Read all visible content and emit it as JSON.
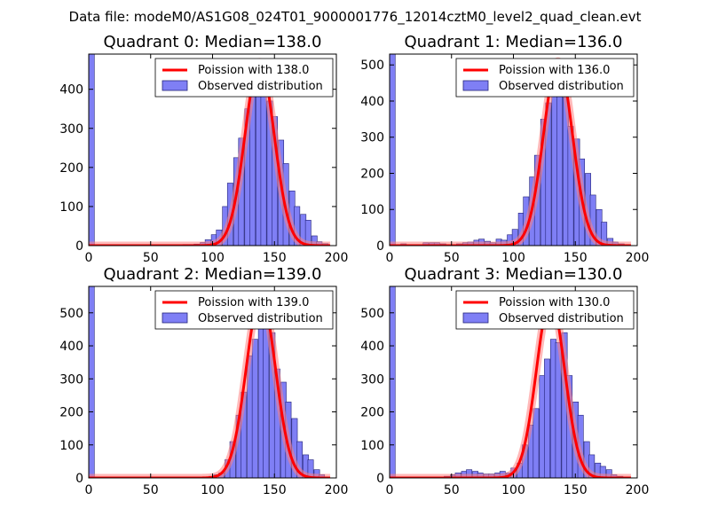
{
  "figure": {
    "suptitle": "Data file: modeM0/AS1G08_024T01_9000001776_12014cztM0_level2_quad_clean.evt"
  },
  "colors": {
    "bars": "#7f7ff5",
    "bar_edge": "#23237a",
    "curve": "#ff0000",
    "curve_halo": "#ff8080",
    "axis": "#000000"
  },
  "chart_data": [
    {
      "type": "bar",
      "title": "Quadrant 0: Median=138.0",
      "xlim": [
        0,
        200
      ],
      "ylim": [
        0,
        490
      ],
      "xticks": [
        0,
        50,
        100,
        150,
        200
      ],
      "yticks": [
        0,
        100,
        200,
        300,
        400
      ],
      "xlabel": "",
      "ylabel": "",
      "bin_width": 4.5,
      "bins": [
        [
          0,
          490
        ],
        [
          76,
          3
        ],
        [
          81,
          3
        ],
        [
          85,
          4
        ],
        [
          90,
          8
        ],
        [
          94,
          15
        ],
        [
          99,
          28
        ],
        [
          103,
          40
        ],
        [
          108,
          100
        ],
        [
          112,
          160
        ],
        [
          117,
          225
        ],
        [
          121,
          275
        ],
        [
          126,
          350
        ],
        [
          130,
          405
        ],
        [
          135,
          430
        ],
        [
          139,
          450
        ],
        [
          144,
          370
        ],
        [
          148,
          330
        ],
        [
          153,
          270
        ],
        [
          157,
          210
        ],
        [
          162,
          140
        ],
        [
          166,
          100
        ],
        [
          171,
          80
        ],
        [
          175,
          65
        ],
        [
          180,
          25
        ],
        [
          184,
          10
        ],
        [
          189,
          5
        ]
      ],
      "legend": {
        "curve_label": "Poission with 138.0",
        "bars_label": "Observed distribution",
        "placement": "upper right"
      },
      "poisson": {
        "mean": 138.0,
        "peak": 470
      }
    },
    {
      "type": "bar",
      "title": "Quadrant 1: Median=136.0",
      "xlim": [
        0,
        200
      ],
      "ylim": [
        0,
        530
      ],
      "xticks": [
        0,
        50,
        100,
        150,
        200
      ],
      "yticks": [
        0,
        100,
        200,
        300,
        400,
        500
      ],
      "xlabel": "",
      "ylabel": "",
      "bin_width": 4.5,
      "bins": [
        [
          0,
          530
        ],
        [
          9,
          5
        ],
        [
          14,
          3
        ],
        [
          18,
          2
        ],
        [
          23,
          2
        ],
        [
          27,
          8
        ],
        [
          32,
          8
        ],
        [
          36,
          8
        ],
        [
          41,
          5
        ],
        [
          45,
          2
        ],
        [
          54,
          5
        ],
        [
          59,
          8
        ],
        [
          63,
          10
        ],
        [
          68,
          15
        ],
        [
          72,
          18
        ],
        [
          77,
          12
        ],
        [
          81,
          8
        ],
        [
          86,
          18
        ],
        [
          90,
          15
        ],
        [
          95,
          30
        ],
        [
          99,
          45
        ],
        [
          104,
          90
        ],
        [
          108,
          135
        ],
        [
          113,
          190
        ],
        [
          117,
          250
        ],
        [
          122,
          350
        ],
        [
          126,
          395
        ],
        [
          131,
          460
        ],
        [
          135,
          480
        ],
        [
          140,
          410
        ],
        [
          144,
          330
        ],
        [
          149,
          295
        ],
        [
          153,
          240
        ],
        [
          158,
          200
        ],
        [
          162,
          140
        ],
        [
          167,
          100
        ],
        [
          171,
          65
        ],
        [
          176,
          20
        ],
        [
          180,
          10
        ],
        [
          185,
          5
        ]
      ],
      "legend": {
        "curve_label": "Poission with 136.0",
        "bars_label": "Observed distribution",
        "placement": "upper right"
      },
      "poisson": {
        "mean": 136.0,
        "peak": 510
      }
    },
    {
      "type": "bar",
      "title": "Quadrant 2: Median=139.0",
      "xlim": [
        0,
        200
      ],
      "ylim": [
        0,
        580
      ],
      "xticks": [
        0,
        50,
        100,
        150,
        200
      ],
      "yticks": [
        0,
        100,
        200,
        300,
        400,
        500
      ],
      "xlabel": "",
      "ylabel": "",
      "bin_width": 4.5,
      "bins": [
        [
          0,
          580
        ],
        [
          74,
          3
        ],
        [
          83,
          3
        ],
        [
          97,
          5
        ],
        [
          101,
          10
        ],
        [
          105,
          15
        ],
        [
          110,
          55
        ],
        [
          114,
          110
        ],
        [
          119,
          190
        ],
        [
          123,
          260
        ],
        [
          128,
          370
        ],
        [
          132,
          420
        ],
        [
          137,
          490
        ],
        [
          141,
          530
        ],
        [
          146,
          440
        ],
        [
          150,
          330
        ],
        [
          155,
          290
        ],
        [
          159,
          230
        ],
        [
          164,
          180
        ],
        [
          168,
          110
        ],
        [
          173,
          70
        ],
        [
          177,
          55
        ],
        [
          182,
          25
        ],
        [
          186,
          10
        ]
      ],
      "legend": {
        "curve_label": "Poission with 139.0",
        "bars_label": "Observed distribution",
        "placement": "upper right"
      },
      "poisson": {
        "mean": 139.0,
        "peak": 550
      }
    },
    {
      "type": "bar",
      "title": "Quadrant 3: Median=130.0",
      "xlim": [
        0,
        200
      ],
      "ylim": [
        0,
        580
      ],
      "xticks": [
        0,
        50,
        100,
        150,
        200
      ],
      "yticks": [
        0,
        100,
        200,
        300,
        400,
        500
      ],
      "xlabel": "",
      "ylabel": "",
      "bin_width": 4.5,
      "bins": [
        [
          0,
          580
        ],
        [
          40,
          3
        ],
        [
          44,
          5
        ],
        [
          49,
          10
        ],
        [
          53,
          15
        ],
        [
          58,
          20
        ],
        [
          62,
          25
        ],
        [
          67,
          20
        ],
        [
          71,
          15
        ],
        [
          76,
          12
        ],
        [
          80,
          12
        ],
        [
          85,
          15
        ],
        [
          89,
          20
        ],
        [
          94,
          15
        ],
        [
          98,
          30
        ],
        [
          103,
          45
        ],
        [
          107,
          100
        ],
        [
          112,
          160
        ],
        [
          116,
          210
        ],
        [
          121,
          310
        ],
        [
          125,
          360
        ],
        [
          130,
          420
        ],
        [
          134,
          410
        ],
        [
          139,
          440
        ],
        [
          143,
          310
        ],
        [
          148,
          230
        ],
        [
          152,
          190
        ],
        [
          157,
          110
        ],
        [
          161,
          70
        ],
        [
          166,
          45
        ],
        [
          170,
          35
        ],
        [
          175,
          25
        ],
        [
          179,
          10
        ],
        [
          184,
          5
        ]
      ],
      "legend": {
        "curve_label": "Poission with 130.0",
        "bars_label": "Observed distribution",
        "placement": "upper right"
      },
      "poisson": {
        "mean": 130.0,
        "peak": 540
      }
    }
  ]
}
